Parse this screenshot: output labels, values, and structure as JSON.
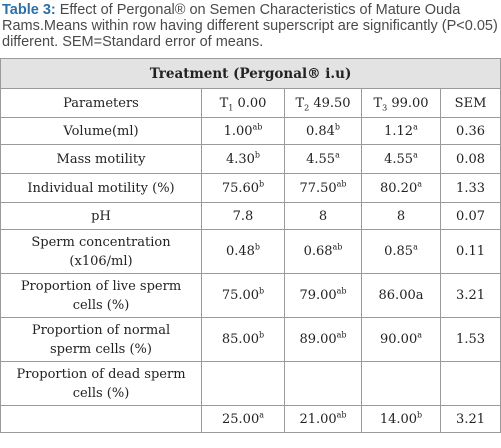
{
  "caption": {
    "label": "Table 3:",
    "text": " Effect of Pergonal® on Semen Characteristics of Mature Ouda Rams.Means within row having different superscript are significantly (P<0.05) different. SEM=Standard error of means."
  },
  "table": {
    "treatment_header": "Treatment (Pergonal® i.u)",
    "columns": {
      "parameters": "Parameters",
      "t1_letter": "T",
      "t1_sub": "1",
      "t1_value": " 0.00",
      "t2_letter": "T",
      "t2_sub": "2",
      "t2_value": " 49.50",
      "t3_letter": "T",
      "t3_sub": "3",
      "t3_value": " 99.00",
      "sem": "SEM"
    },
    "rows": [
      {
        "param": "Volume(ml)",
        "t1": "1.00",
        "t1_sup": "ab",
        "t2": "0.84",
        "t2_sup": "b",
        "t3": "1.12",
        "t3_sup": "a",
        "sem": "0.36"
      },
      {
        "param": "Mass motility",
        "t1": "4.30",
        "t1_sup": "b",
        "t2": "4.55",
        "t2_sup": "a",
        "t3": "4.55",
        "t3_sup": "a",
        "sem": "0.08"
      },
      {
        "param": "Individual motility (%)",
        "t1": "75.60",
        "t1_sup": "b",
        "t2": "77.50",
        "t2_sup": "ab",
        "t3": "80.20",
        "t3_sup": "a",
        "sem": "1.33"
      },
      {
        "param": "pH",
        "t1": "7.8",
        "t1_sup": "",
        "t2": "8",
        "t2_sup": "",
        "t3": "8",
        "t3_sup": "",
        "sem": "0.07"
      },
      {
        "param_line1": "Sperm concentration",
        "param_line2": "(x106/ml)",
        "t1": "0.48",
        "t1_sup": "b",
        "t2": "0.68",
        "t2_sup": "ab",
        "t3": "0.85",
        "t3_sup": "a",
        "sem": "0.11"
      },
      {
        "param_line1": "Proportion of live sperm",
        "param_line2": "cells (%)",
        "t1": "75.00",
        "t1_sup": "b",
        "t2": "79.00",
        "t2_sup": "ab",
        "t3": "86.00a",
        "t3_sup": "",
        "sem": "3.21"
      },
      {
        "param_line1": "Proportion of normal",
        "param_line2": "sperm cells (%)",
        "t1": "85.00",
        "t1_sup": "b",
        "t2": "89.00",
        "t2_sup": "ab",
        "t3": "90.00",
        "t3_sup": "a",
        "sem": "1.53"
      },
      {
        "param_line1": "Proportion of dead sperm",
        "param_line2": "cells (%)"
      },
      {
        "t1": "25.00",
        "t1_sup": "a",
        "t2": "21.00",
        "t2_sup": "ab",
        "t3": "14.00",
        "t3_sup": "b",
        "sem": "3.21"
      }
    ]
  }
}
